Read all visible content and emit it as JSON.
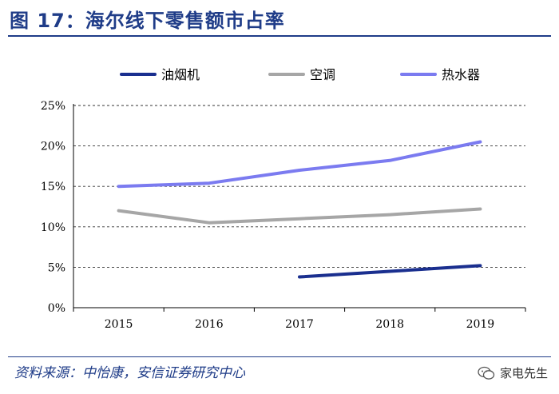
{
  "figure": {
    "title": "图 17：海尔线下零售额市占率",
    "source": "资料来源：中怡康，安信证券研究中心",
    "watermark": "家电先生"
  },
  "colors": {
    "title": "#1f3c88",
    "grid": "#333333"
  },
  "chart_data": {
    "type": "line",
    "title": "海尔线下零售额市占率",
    "x": [
      "2015",
      "2016",
      "2017",
      "2018",
      "2019"
    ],
    "ylim": [
      0,
      25
    ],
    "yticks": [
      0,
      5,
      10,
      15,
      20,
      25
    ],
    "ytick_labels": [
      "0%",
      "5%",
      "10%",
      "15%",
      "20%",
      "25%"
    ],
    "grid": "horizontal dashed",
    "legend_position": "top",
    "series": [
      {
        "name": "油烟机",
        "color": "#1a2f8f",
        "values": [
          null,
          null,
          3.8,
          4.5,
          5.2
        ]
      },
      {
        "name": "空调",
        "color": "#a6a6a6",
        "values": [
          12.0,
          10.5,
          11.0,
          11.5,
          12.2
        ]
      },
      {
        "name": "热水器",
        "color": "#7b7bf0",
        "values": [
          15.0,
          15.4,
          17.0,
          18.2,
          20.5
        ]
      }
    ]
  }
}
